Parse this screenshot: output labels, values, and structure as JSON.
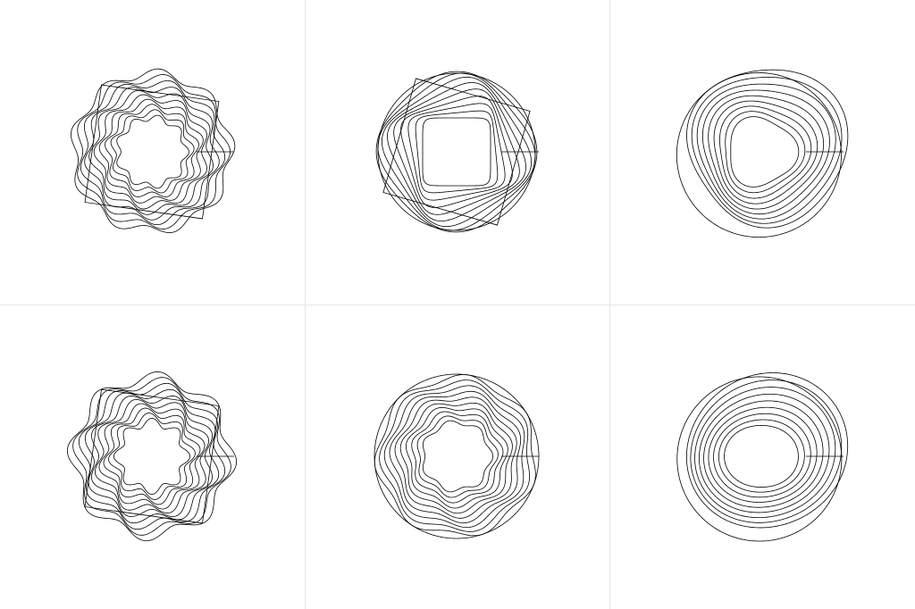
{
  "colors": {
    "background": "#ffffff",
    "stroke": "#000000",
    "grid_line": "#e6e6e6"
  },
  "grid": {
    "rows": 2,
    "columns": 3
  },
  "shapes": [
    {
      "id": "flower-9",
      "lobes": 9,
      "outer_shape": "square",
      "rings": 10,
      "wave_amplitude": 0.09,
      "rotation_per_ring": 5.0,
      "outer_warp": 0.0
    },
    {
      "id": "square-4",
      "lobes": 4,
      "outer_shape": "square",
      "rings": 10,
      "wave_amplitude": 0.1,
      "rotation_per_ring": 5.5,
      "outer_warp": 0.0
    },
    {
      "id": "triangle-3",
      "lobes": 3,
      "outer_shape": "blob",
      "rings": 9,
      "wave_amplitude": 0.1,
      "rotation_per_ring": 4.0,
      "outer_warp": 0.12
    },
    {
      "id": "star-8",
      "lobes": 8,
      "outer_shape": "square",
      "rings": 10,
      "wave_amplitude": 0.12,
      "rotation_per_ring": 4.5,
      "outer_warp": 0.0
    },
    {
      "id": "wave-7",
      "lobes": 7,
      "outer_shape": "circle",
      "rings": 10,
      "wave_amplitude": 0.07,
      "rotation_per_ring": 3.5,
      "outer_warp": 0.0
    },
    {
      "id": "oval-2",
      "lobes": 2,
      "outer_shape": "blob",
      "rings": 9,
      "wave_amplitude": 0.09,
      "rotation_per_ring": 4.0,
      "outer_warp": 0.1
    }
  ]
}
